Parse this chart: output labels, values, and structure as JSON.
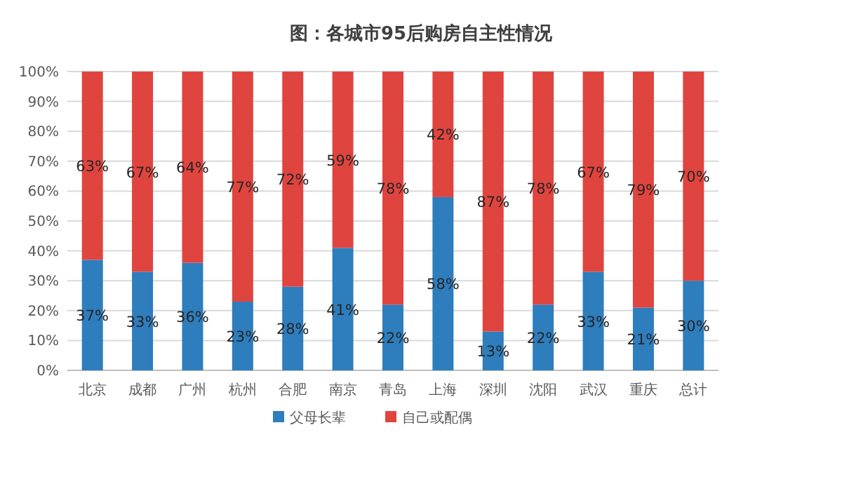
{
  "chart_data": {
    "type": "bar",
    "title": "图：各城市95后购房自主性情况",
    "stacked": true,
    "categories": [
      "北京",
      "成都",
      "广州",
      "杭州",
      "合肥",
      "南京",
      "青岛",
      "上海",
      "深圳",
      "沈阳",
      "武汉",
      "重庆",
      "总计"
    ],
    "series": [
      {
        "name": "父母长辈",
        "color": "#2e7dbd",
        "values": [
          37,
          33,
          36,
          23,
          28,
          41,
          22,
          58,
          13,
          22,
          33,
          21,
          30
        ],
        "value_labels": [
          "37%",
          "33%",
          "36%",
          "23%",
          "28%",
          "41%",
          "22%",
          "58%",
          "13%",
          "22%",
          "33%",
          "21%",
          "30%"
        ]
      },
      {
        "name": "自己或配偶",
        "color": "#e0443f",
        "values": [
          63,
          67,
          64,
          77,
          72,
          59,
          78,
          42,
          87,
          78,
          67,
          79,
          70
        ],
        "value_labels": [
          "63%",
          "67%",
          "64%",
          "77%",
          "72%",
          "59%",
          "78%",
          "42%",
          "87%",
          "78%",
          "67%",
          "79%",
          "70%"
        ]
      }
    ],
    "ylim": [
      0,
      100
    ],
    "yticks": [
      {
        "value": 0,
        "label": "0%"
      },
      {
        "value": 10,
        "label": "10%"
      },
      {
        "value": 20,
        "label": "20%"
      },
      {
        "value": 30,
        "label": "30%"
      },
      {
        "value": 40,
        "label": "40%"
      },
      {
        "value": 50,
        "label": "50%"
      },
      {
        "value": 60,
        "label": "60%"
      },
      {
        "value": 70,
        "label": "70%"
      },
      {
        "value": 80,
        "label": "80%"
      },
      {
        "value": 90,
        "label": "90%"
      },
      {
        "value": 100,
        "label": "100%"
      }
    ],
    "grid": "y",
    "legend": "bottom"
  }
}
